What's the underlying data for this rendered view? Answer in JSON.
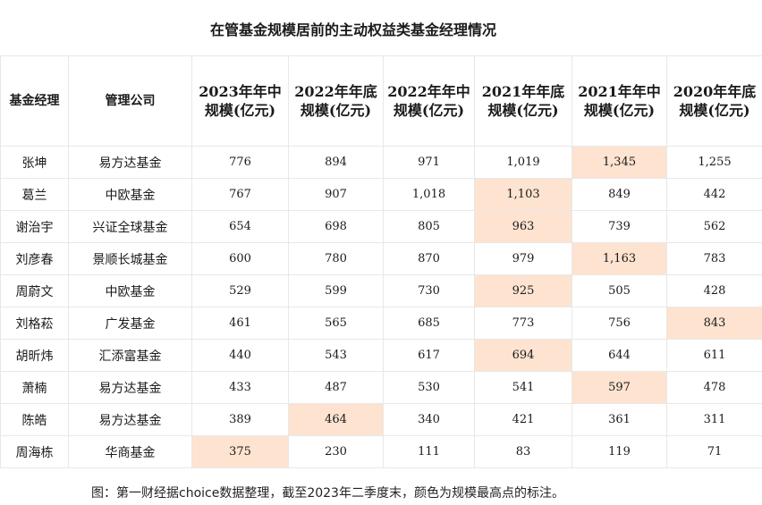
{
  "title": "在管基金规模居前的主动权益类基金经理情况",
  "table": {
    "headers": [
      "基金经理",
      "管理公司",
      "2023年年中规模(亿元)",
      "2022年年底规模(亿元)",
      "2022年年中规模(亿元)",
      "2021年年底规模(亿元)",
      "2021年年中规模(亿元)",
      "2020年年底规模(亿元)"
    ],
    "rows": [
      {
        "manager": "张坤",
        "company": "易方达基金",
        "values": [
          "776",
          "894",
          "971",
          "1,019",
          "1,345",
          "1,255"
        ],
        "highlight": 4
      },
      {
        "manager": "葛兰",
        "company": "中欧基金",
        "values": [
          "767",
          "907",
          "1,018",
          "1,103",
          "849",
          "442"
        ],
        "highlight": 3
      },
      {
        "manager": "谢治宇",
        "company": "兴证全球基金",
        "values": [
          "654",
          "698",
          "805",
          "963",
          "739",
          "562"
        ],
        "highlight": 3
      },
      {
        "manager": "刘彦春",
        "company": "景顺长城基金",
        "values": [
          "600",
          "780",
          "870",
          "979",
          "1,163",
          "783"
        ],
        "highlight": 4
      },
      {
        "manager": "周蔚文",
        "company": "中欧基金",
        "values": [
          "529",
          "599",
          "730",
          "925",
          "505",
          "428"
        ],
        "highlight": 3
      },
      {
        "manager": "刘格菘",
        "company": "广发基金",
        "values": [
          "461",
          "565",
          "685",
          "773",
          "756",
          "843"
        ],
        "highlight": 5
      },
      {
        "manager": "胡昕炜",
        "company": "汇添富基金",
        "values": [
          "440",
          "543",
          "617",
          "694",
          "644",
          "611"
        ],
        "highlight": 3
      },
      {
        "manager": "萧楠",
        "company": "易方达基金",
        "values": [
          "433",
          "487",
          "530",
          "541",
          "597",
          "478"
        ],
        "highlight": 4
      },
      {
        "manager": "陈皓",
        "company": "易方达基金",
        "values": [
          "389",
          "464",
          "340",
          "421",
          "361",
          "311"
        ],
        "highlight": 1
      },
      {
        "manager": "周海栋",
        "company": "华商基金",
        "values": [
          "375",
          "230",
          "111",
          "83",
          "119",
          "71"
        ],
        "highlight": 0
      }
    ]
  },
  "caption": "图：第一财经据choice数据整理，截至2023年二季度末，颜色为规模最高点的标注。",
  "colors": {
    "highlight": "#fde3d0",
    "border": "#e8e8e8"
  }
}
